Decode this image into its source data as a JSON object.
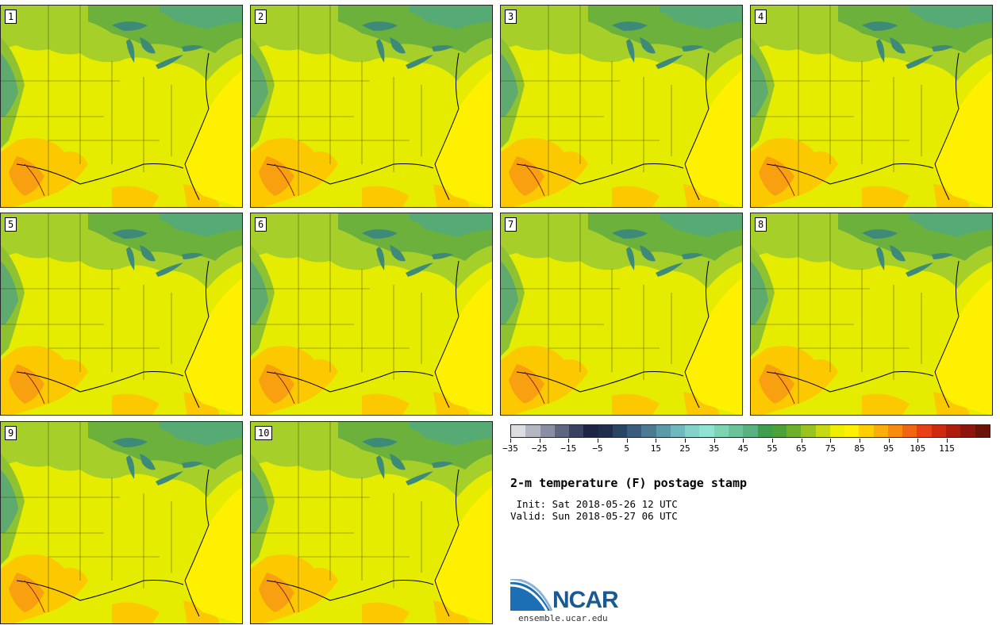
{
  "members": [
    "1",
    "2",
    "3",
    "4",
    "5",
    "6",
    "7",
    "8",
    "9",
    "10"
  ],
  "colorbar": {
    "colors": [
      "#dcdde0",
      "#b4b6c2",
      "#8a8ea2",
      "#5f6682",
      "#384262",
      "#1c2542",
      "#202e4a",
      "#2c4464",
      "#3b5d7b",
      "#4b7a92",
      "#5c9aa7",
      "#6fb8bb",
      "#83d2ca",
      "#8ee3d2",
      "#7dd3b2",
      "#6cc39a",
      "#58b27f",
      "#3f9e4e",
      "#4ea136",
      "#6fb02b",
      "#99c31f",
      "#c6da12",
      "#eeee00",
      "#fef000",
      "#fcd000",
      "#fbad0b",
      "#f88a10",
      "#f26512",
      "#e84014",
      "#cd2a0f",
      "#ae1c0c",
      "#8e150d",
      "#6b1209"
    ],
    "tick_labels": [
      "−35",
      "−25",
      "−15",
      "−5",
      "5",
      "15",
      "25",
      "35",
      "45",
      "55",
      "65",
      "75",
      "85",
      "95",
      "105",
      "115"
    ]
  },
  "title": "2-m temperature (F) postage stamp",
  "init": " Init: Sat 2018-05-26 12 UTC",
  "valid": "Valid: Sun 2018-05-27 06 UTC",
  "logo": {
    "name": "NCAR",
    "url": "ensemble.ucar.edu"
  }
}
